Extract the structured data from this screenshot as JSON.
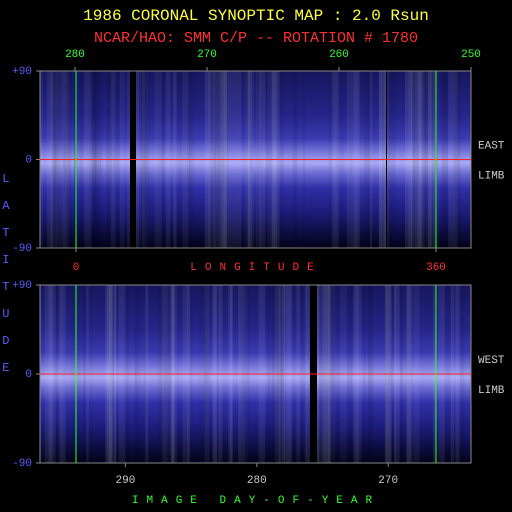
{
  "title": "1986 CORONAL SYNOPTIC MAP : 2.0 Rsun",
  "subtitle": "NCAR/HAO: SMM C/P -- ROTATION # 1780",
  "ylabel": "LATITUDE",
  "chart_data": [
    {
      "type": "synoptic-map",
      "xlim": [
        282.65,
        250
      ],
      "xticks": [
        280,
        270,
        260,
        250
      ],
      "x2lim": [
        -36,
        395
      ],
      "x2ticks": [
        0,
        360
      ],
      "xlabel": "LONGITUDE",
      "ylim": [
        -90,
        90
      ],
      "yticks": [
        -90,
        0,
        {
          "value": 90,
          "label": "+90"
        }
      ],
      "side_label": "EAST",
      "side_label2": "LIMB"
    },
    {
      "type": "synoptic-map",
      "xlim": [
        296.5,
        263.7
      ],
      "xticks": [
        290,
        280,
        270
      ],
      "xlabel": "IMAGE DAY-OF-YEAR",
      "ylim": [
        -90,
        90
      ],
      "yticks": [
        -90,
        0,
        {
          "value": 90,
          "label": "+90"
        }
      ],
      "side_label": "WEST",
      "side_label2": "LIMB"
    }
  ]
}
